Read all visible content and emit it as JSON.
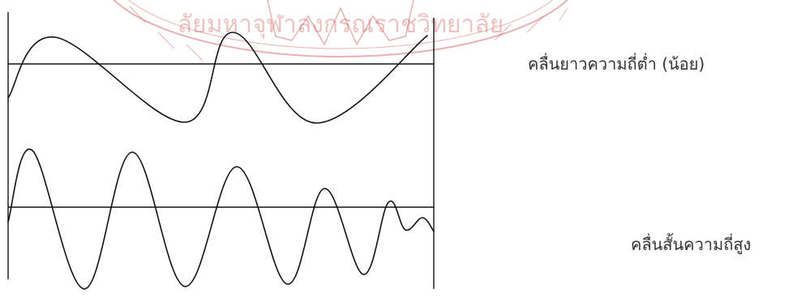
{
  "seal": {
    "text": "ลัยมหาจุฬาลงกรณราชวิทยาลัย",
    "color": "#c9524e"
  },
  "waves": [
    {
      "id": "long",
      "label": "คลื่นยาวความถี่ต่ำ (น้อย)"
    },
    {
      "id": "short",
      "label": "คลื่นสั้นความถี่สูง"
    }
  ]
}
